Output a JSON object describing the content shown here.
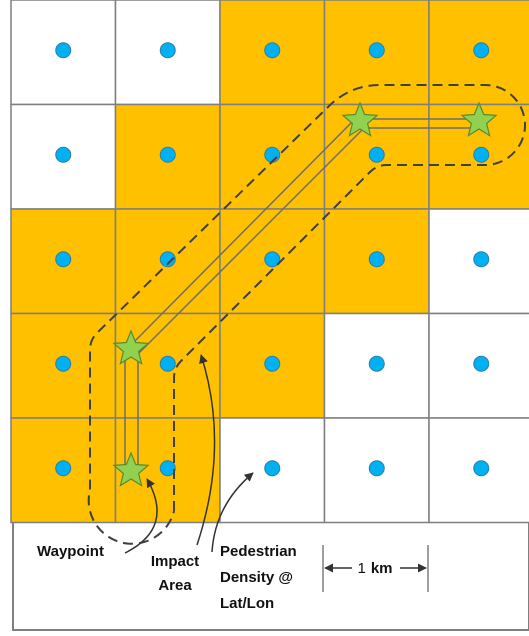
{
  "colors": {
    "shaded_cell": "#FFC000",
    "empty_cell": "#FFFFFF",
    "grid_line": "#7F7F7F",
    "density_point": "#00B0F0",
    "waypoint": "#92D050",
    "waypoint_stroke": "#5A8A2E",
    "route_line": "#6E6E6E",
    "impact_outline": "#404040",
    "text": "#111111"
  },
  "grid": {
    "rows": 5,
    "cols": 5,
    "shaded": [
      [
        0,
        0,
        1,
        1,
        1
      ],
      [
        0,
        1,
        1,
        1,
        1
      ],
      [
        1,
        1,
        1,
        1,
        0
      ],
      [
        1,
        1,
        1,
        0,
        0
      ],
      [
        1,
        1,
        0,
        0,
        0
      ]
    ]
  },
  "waypoints": [
    {
      "col": 1,
      "row": 4
    },
    {
      "col": 1,
      "row": 3
    },
    {
      "col": 3,
      "row": 1
    },
    {
      "col": 4,
      "row": 1
    }
  ],
  "labels": {
    "waypoint": "Waypoint",
    "impact_line1": "Impact",
    "impact_line2": "Area",
    "density_line1": "Pedestrian",
    "density_line2": "Density @",
    "density_line3": "Lat/Lon",
    "scale_number": "1",
    "scale_unit": "km"
  }
}
